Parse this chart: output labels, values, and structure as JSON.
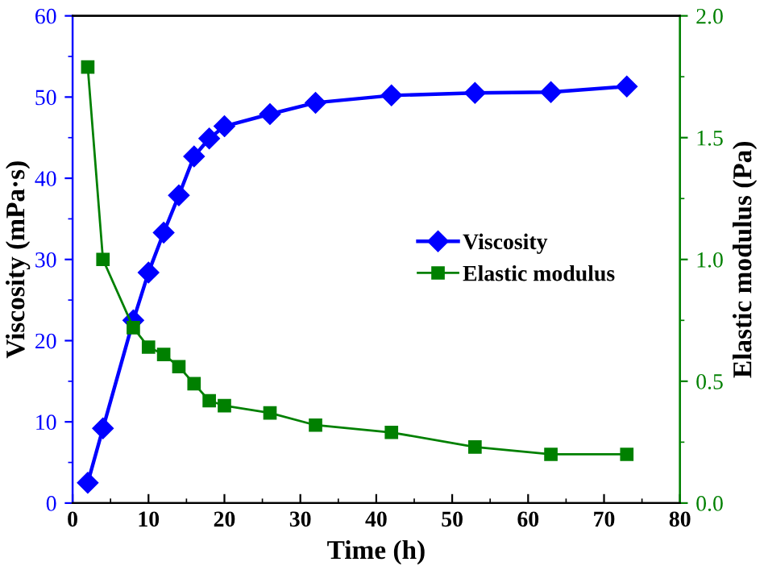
{
  "chart_data": {
    "type": "line",
    "xlabel": "Time (h)",
    "ylabel": "Viscosity (mPa·s)",
    "y2label": "Elastic modulus (Pa)",
    "x": [
      2,
      4,
      8,
      10,
      12,
      14,
      16,
      18,
      20,
      26,
      32,
      42,
      53,
      63,
      73
    ],
    "series": [
      {
        "name": "Viscosity",
        "color": "#0000ff",
        "marker": "diamond",
        "values": [
          2.5,
          9.2,
          22.5,
          28.4,
          33.3,
          37.9,
          42.7,
          44.9,
          46.4,
          47.9,
          49.3,
          50.2,
          50.5,
          50.6,
          51.3
        ]
      },
      {
        "name": "Elastic modulus",
        "color": "#008000",
        "marker": "square",
        "axis": "y2",
        "values": [
          1.79,
          1.0,
          0.72,
          0.64,
          0.61,
          0.56,
          0.49,
          0.42,
          0.4,
          0.37,
          0.32,
          0.29,
          0.23,
          0.2,
          0.2
        ]
      }
    ],
    "xlim": [
      0,
      80
    ],
    "xticks": [
      0,
      10,
      20,
      30,
      40,
      50,
      60,
      70,
      80
    ],
    "ylim": [
      0,
      60
    ],
    "yticks": [
      0,
      10,
      20,
      30,
      40,
      50,
      60
    ],
    "y2lim": [
      0,
      2.0
    ],
    "y2ticks": [
      {
        "value": 0,
        "label": "0.0"
      },
      {
        "value": 0.5,
        "label": "0.5"
      },
      {
        "value": 1.0,
        "label": "1.0"
      },
      {
        "value": 1.5,
        "label": "1.5"
      },
      {
        "value": 2.0,
        "label": "2.0"
      }
    ],
    "legend": "center right",
    "grid": false
  }
}
